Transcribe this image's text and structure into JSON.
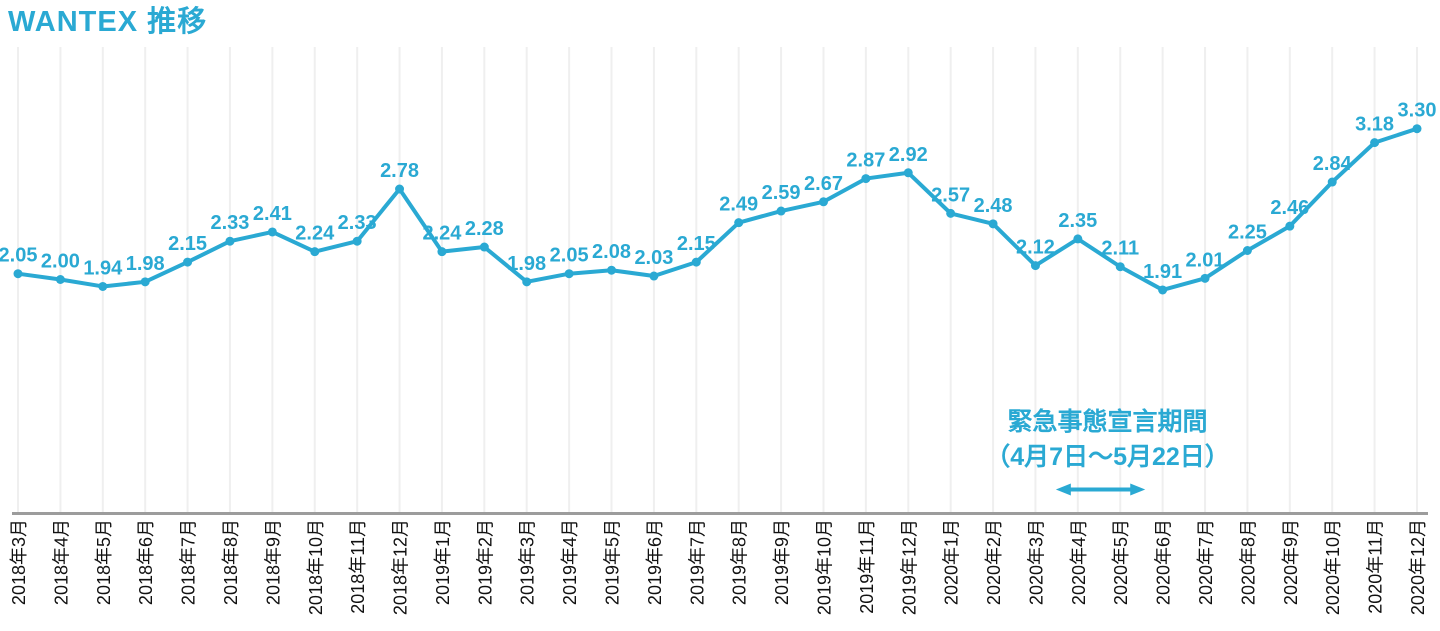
{
  "chart_data": {
    "type": "line",
    "title": "WANTEX 推移",
    "series_name": "WANTEX",
    "categories": [
      "2018年3月",
      "2018年4月",
      "2018年5月",
      "2018年6月",
      "2018年7月",
      "2018年8月",
      "2018年9月",
      "2018年10月",
      "2018年11月",
      "2018年12月",
      "2019年1月",
      "2019年2月",
      "2019年3月",
      "2019年4月",
      "2019年5月",
      "2019年6月",
      "2019年7月",
      "2019年8月",
      "2019年9月",
      "2019年10月",
      "2019年11月",
      "2019年12月",
      "2020年1月",
      "2020年2月",
      "2020年3月",
      "2020年4月",
      "2020年5月",
      "2020年6月",
      "2020年7月",
      "2020年8月",
      "2020年9月",
      "2020年10月",
      "2020年11月",
      "2020年12月"
    ],
    "values": [
      2.05,
      2.0,
      1.94,
      1.98,
      2.15,
      2.33,
      2.41,
      2.24,
      2.33,
      2.78,
      2.24,
      2.28,
      1.98,
      2.05,
      2.08,
      2.03,
      2.15,
      2.49,
      2.59,
      2.67,
      2.87,
      2.92,
      2.57,
      2.48,
      2.12,
      2.35,
      2.11,
      1.91,
      2.01,
      2.25,
      2.46,
      2.84,
      3.18,
      3.3
    ],
    "value_labels": [
      "2.05",
      "2.00",
      "1.94",
      "1.98",
      "2.15",
      "2.33",
      "2.41",
      "2.24",
      "2.33",
      "2.78",
      "2.24",
      "2.28",
      "1.98",
      "2.05",
      "2.08",
      "2.03",
      "2.15",
      "2.49",
      "2.59",
      "2.67",
      "2.87",
      "2.92",
      "2.57",
      "2.48",
      "2.12",
      "2.35",
      "2.11",
      "1.91",
      "2.01",
      "2.25",
      "2.46",
      "2.84",
      "3.18",
      "3.30"
    ],
    "xlabel": "",
    "ylabel": "",
    "ylim": [
      0,
      4
    ],
    "grid": "vertical-only",
    "legend": "none",
    "annotation": {
      "line1": "緊急事態宣言期間",
      "line2": "（4月7日〜5月22日）",
      "span_from": "2020年4月",
      "span_to": "2020年5月",
      "arrow": "double-headed"
    },
    "colors": {
      "accent": "#2aa9d3",
      "gridline": "#efefef",
      "axis": "#9c9c9c",
      "xlabel": "#111111",
      "background": "#ffffff"
    }
  }
}
